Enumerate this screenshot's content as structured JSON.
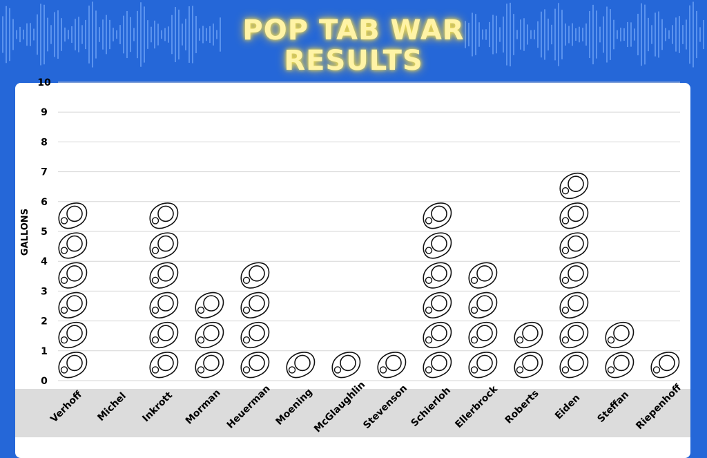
{
  "chart_data": {
    "type": "pictograph",
    "title": "POP TAB WAR RESULTS",
    "y_label": "GALLONS",
    "categories": [
      "Verhoff",
      "Michel",
      "Inkrott",
      "Morman",
      "Heuerman",
      "Moening",
      "McGlaughlin",
      "Stevenson",
      "Schierloh",
      "Ellerbrock",
      "Roberts",
      "Eiden",
      "Steffan",
      "Riepenhoff"
    ],
    "values": [
      6,
      0,
      6,
      3,
      4,
      1,
      1,
      1,
      6,
      4,
      2,
      7,
      2,
      1
    ],
    "ylim": [
      0,
      10
    ],
    "yticks": [
      0,
      1,
      2,
      3,
      4,
      5,
      6,
      7,
      8,
      9,
      10
    ],
    "grid": true
  }
}
